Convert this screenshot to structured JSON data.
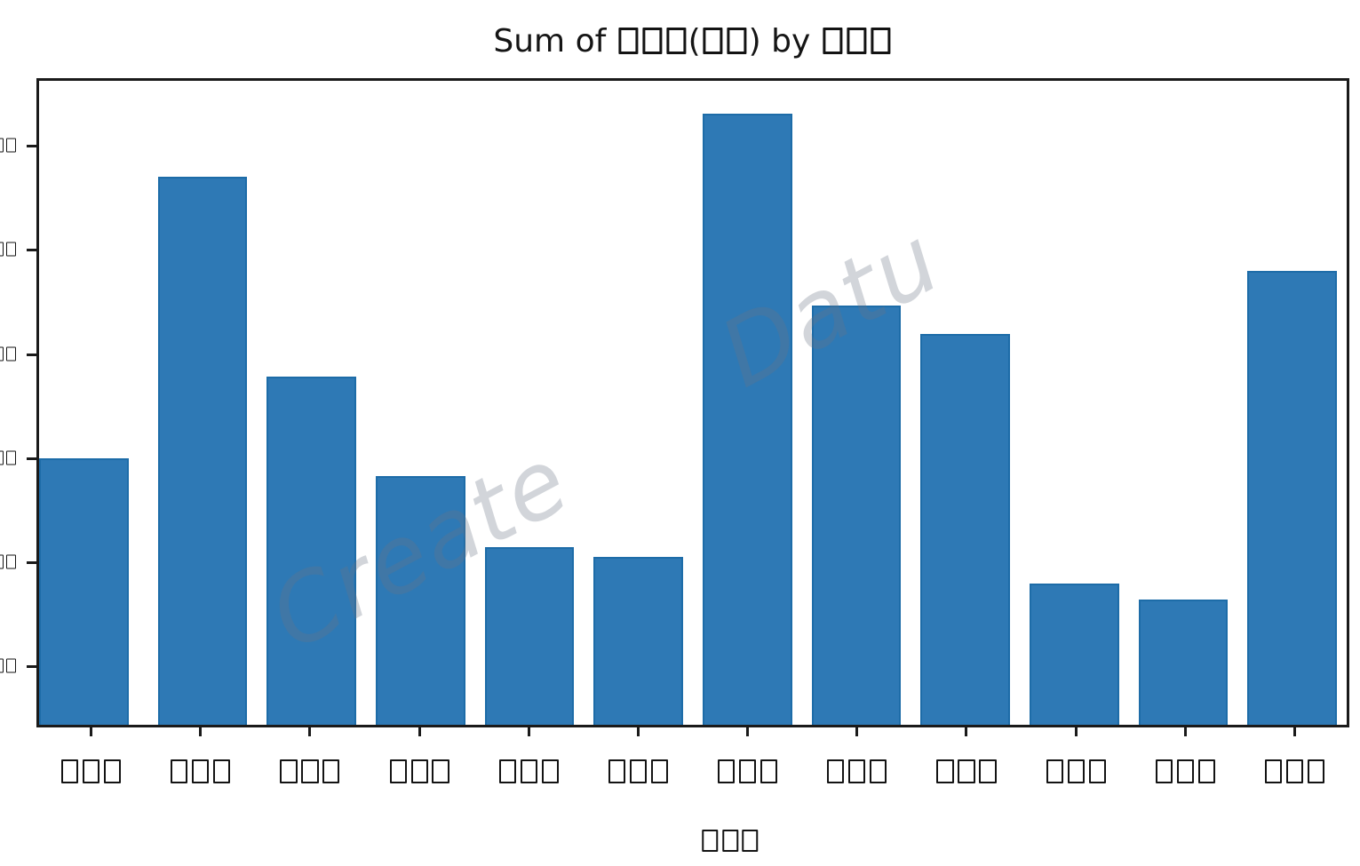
{
  "title": {
    "text": "Sum of □□□(□□) by □□□"
  },
  "watermark": {
    "fragments": {
      "first": "Create",
      "second": "Datu"
    }
  },
  "x_axis": {
    "title": "□□□"
  },
  "colors": {
    "bar_fill": "#2e79b5",
    "bar_edge": "#1d6ca8",
    "spine": "#1a1a1a",
    "watermark_gray": "#c8ccd2"
  },
  "chart_data": {
    "type": "bar",
    "title": "Sum of □□□(□□) by □□□",
    "xlabel": "□□□",
    "ylabel": "",
    "categories": [
      "□□□",
      "□□□",
      "□□□",
      "□□□",
      "□□□",
      "□□□",
      "□□□",
      "□□□",
      "□□□",
      "□□□",
      "□□□",
      "□□□"
    ],
    "values": [
      3.0,
      5.71,
      3.79,
      2.83,
      2.15,
      2.05,
      6.31,
      4.47,
      4.2,
      1.8,
      1.64,
      4.8
    ],
    "units_note": "axis text unreadable (missing-glyph boxes); values in tick units, lowest visible tick = 1, tick spacing = 1",
    "ylim": [
      0.44,
      6.63
    ],
    "yticks": [
      1,
      2,
      3,
      4,
      5,
      6
    ],
    "ytick_labels": [
      "□□",
      "□□",
      "□□",
      "□□",
      "□□",
      "□□"
    ],
    "grid": false,
    "legend": null,
    "bar_color": "#2e79b5"
  }
}
